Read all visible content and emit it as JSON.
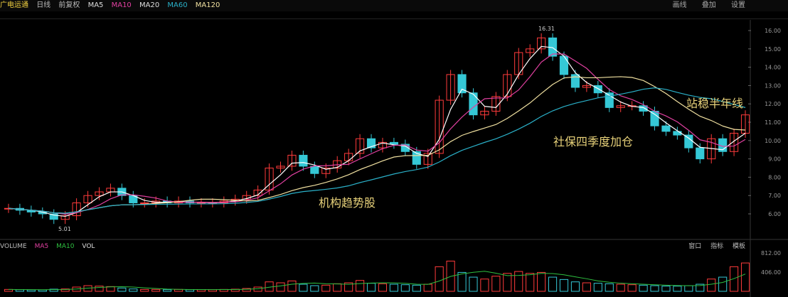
{
  "header": {
    "stock_name": "广电运通",
    "period": "日线",
    "adjust": "前复权",
    "ma_items": [
      "MA5",
      "MA10",
      "MA20",
      "MA60",
      "MA120"
    ],
    "tools": [
      "画线",
      "叠加",
      "设置"
    ]
  },
  "volume_header": {
    "label": "VOLUME",
    "items": [
      "MA5",
      "MA10",
      "VOL"
    ]
  },
  "volume_tools": [
    "窗口",
    "指标",
    "模板"
  ],
  "annotations": {
    "a1": "机构趋势股",
    "a2": "社保四季度加仓",
    "a3": "站稳半年线",
    "high_label": "16.31",
    "low_label": "5.01"
  },
  "colors": {
    "up": "#ff3b3b",
    "down": "#35c8d6",
    "ma_short": "#ffffff",
    "ma_mid": "#e040a0",
    "ma_long": "#f0e0a0",
    "ma_halfyear": "#2ab0c8"
  },
  "chart_data": {
    "type": "candlestick",
    "y_ticks": [
      "16.00",
      "15.00",
      "14.00",
      "13.00",
      "12.00",
      "11.00",
      "10.00",
      "9.00",
      "8.00",
      "7.00",
      "6.00"
    ],
    "ylim": [
      5.2,
      16.4
    ],
    "close": [
      6.3,
      6.2,
      6.1,
      6.0,
      5.7,
      5.9,
      6.6,
      7.0,
      7.2,
      7.4,
      7.0,
      6.6,
      6.6,
      6.7,
      6.6,
      6.7,
      6.6,
      6.6,
      6.6,
      6.7,
      6.8,
      7.0,
      7.3,
      8.5,
      8.6,
      9.2,
      8.6,
      8.2,
      8.5,
      8.9,
      9.3,
      10.1,
      9.6,
      9.9,
      9.8,
      9.4,
      8.7,
      9.3,
      12.2,
      13.6,
      12.6,
      11.4,
      11.6,
      12.4,
      13.6,
      14.8,
      15.0,
      15.6,
      14.6,
      13.6,
      12.9,
      13.0,
      12.6,
      11.8,
      11.9,
      11.9,
      11.6,
      10.8,
      10.5,
      10.3,
      9.6,
      9.0,
      10.1,
      9.4,
      10.4,
      11.4
    ],
    "volume_ticks": [
      "812.00",
      "406.00"
    ],
    "volume": [
      40,
      35,
      30,
      30,
      45,
      50,
      90,
      120,
      110,
      100,
      70,
      50,
      40,
      40,
      35,
      40,
      35,
      35,
      35,
      40,
      45,
      60,
      90,
      200,
      180,
      220,
      150,
      120,
      130,
      160,
      180,
      230,
      170,
      160,
      150,
      140,
      130,
      150,
      520,
      640,
      400,
      300,
      260,
      320,
      380,
      420,
      380,
      400,
      300,
      250,
      200,
      180,
      170,
      160,
      150,
      140,
      130,
      120,
      110,
      110,
      120,
      150,
      260,
      300,
      520,
      600
    ]
  }
}
